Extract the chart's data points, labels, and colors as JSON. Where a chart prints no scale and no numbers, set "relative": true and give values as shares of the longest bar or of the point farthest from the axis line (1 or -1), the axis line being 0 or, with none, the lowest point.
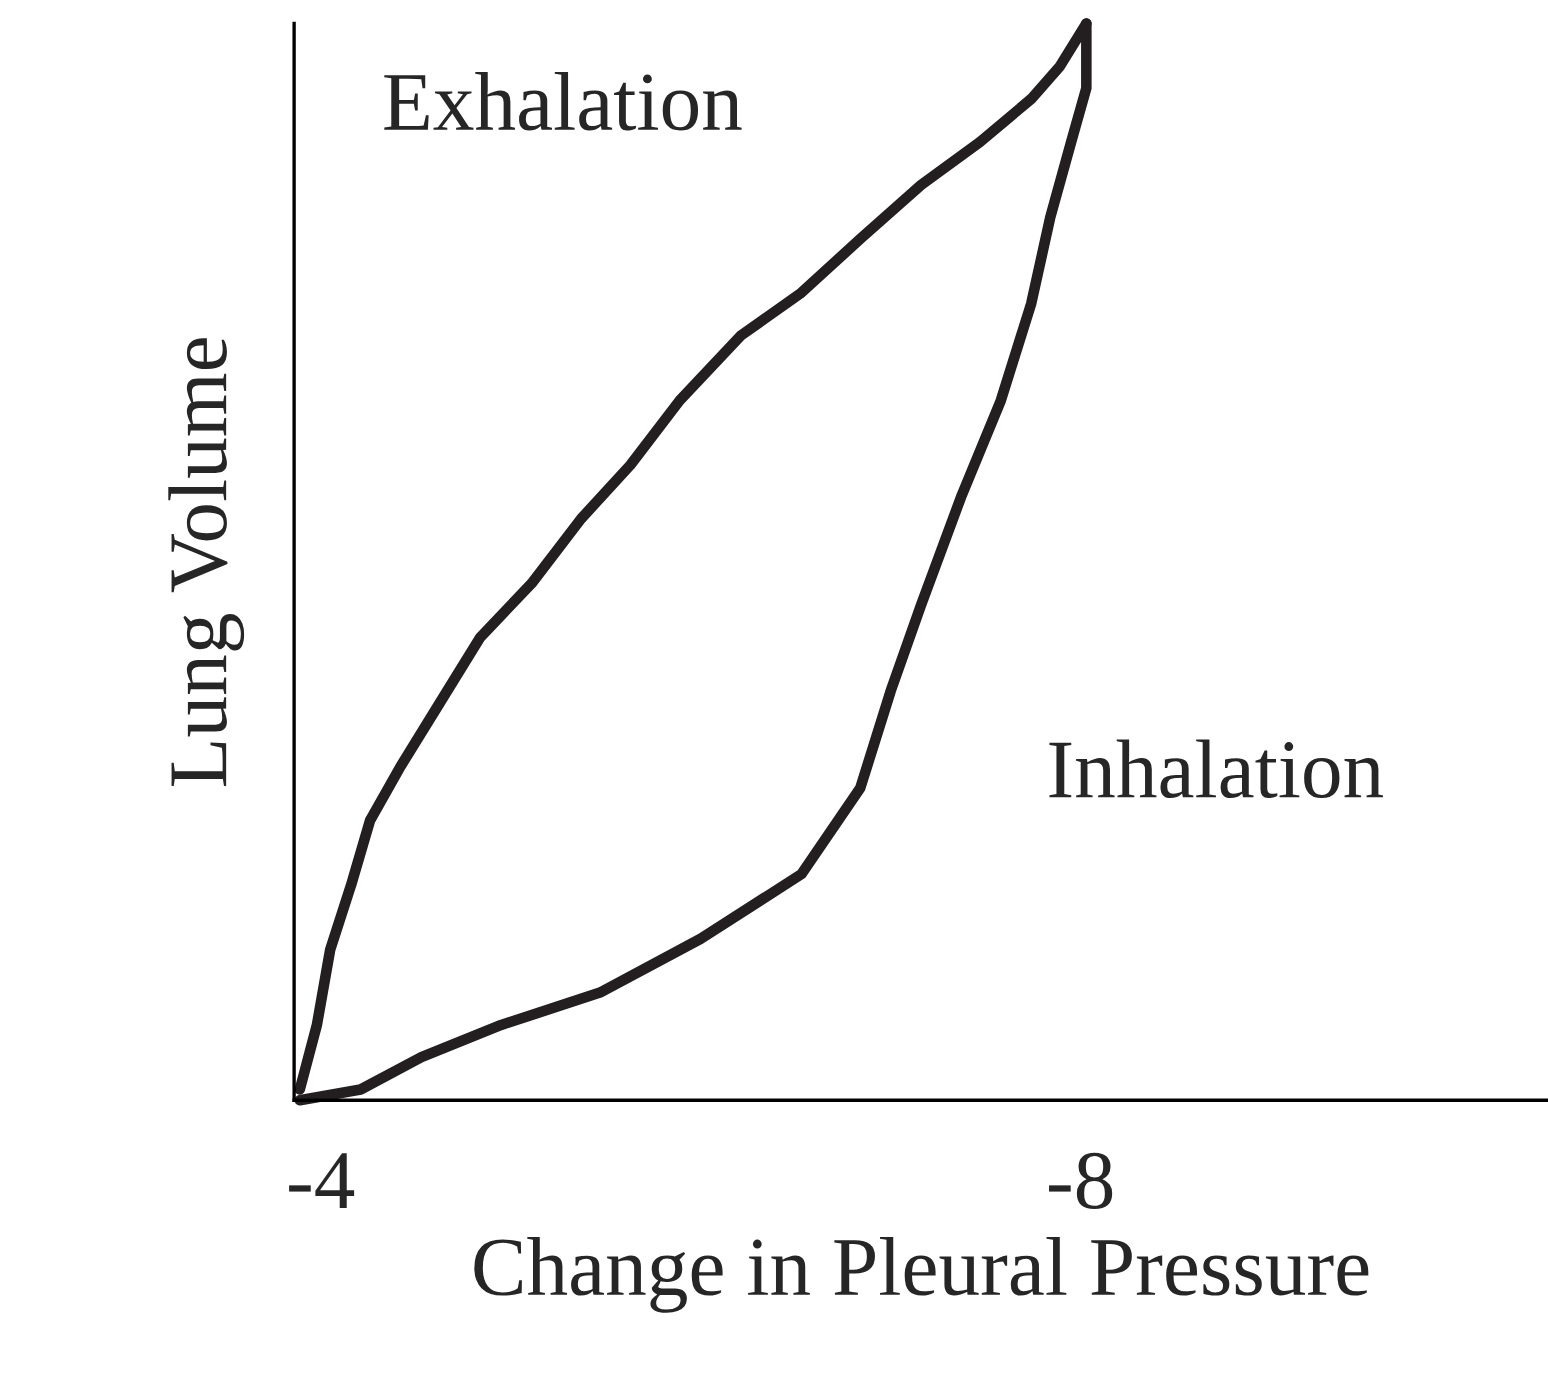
{
  "chart_data": {
    "type": "line",
    "relative": true,
    "xlabel": "Change in Pleural Pressure",
    "ylabel": "Lung Volume",
    "xlim": [
      -3.86,
      -10.46
    ],
    "xticks": [
      -4,
      -8
    ],
    "grid": false,
    "marker": "none",
    "line_style": "solid",
    "annotations": [
      "Exhalation",
      "Inhalation"
    ],
    "series": [
      {
        "color": "#231f20",
        "x": [
          -3.89,
          -3.98,
          -4.05,
          -4.16,
          -4.26,
          -4.42,
          -4.63,
          -4.84,
          -5.11,
          -5.37,
          -5.63,
          -5.89,
          -6.21,
          -6.53,
          -6.84,
          -7.16,
          -7.47,
          -7.74,
          -7.89,
          -8.03
        ],
        "values": [
          0.01,
          0.07,
          0.14,
          0.2,
          0.26,
          0.31,
          0.37,
          0.43,
          0.48,
          0.54,
          0.59,
          0.65,
          0.71,
          0.75,
          0.8,
          0.85,
          0.89,
          0.93,
          0.96,
          1
        ]
      },
      {
        "color": "#231f20",
        "x": [
          -3.89,
          -4.21,
          -4.53,
          -4.95,
          -5.47,
          -6.0,
          -6.53,
          -6.84,
          -7.0,
          -7.16,
          -7.37,
          -7.58,
          -7.74,
          -7.84,
          -7.95,
          -8.03,
          -8.03
        ],
        "values": [
          0,
          0.01,
          0.04,
          0.07,
          0.1,
          0.15,
          0.21,
          0.29,
          0.38,
          0.46,
          0.56,
          0.65,
          0.74,
          0.82,
          0.89,
          0.94,
          1
        ]
      }
    ]
  }
}
